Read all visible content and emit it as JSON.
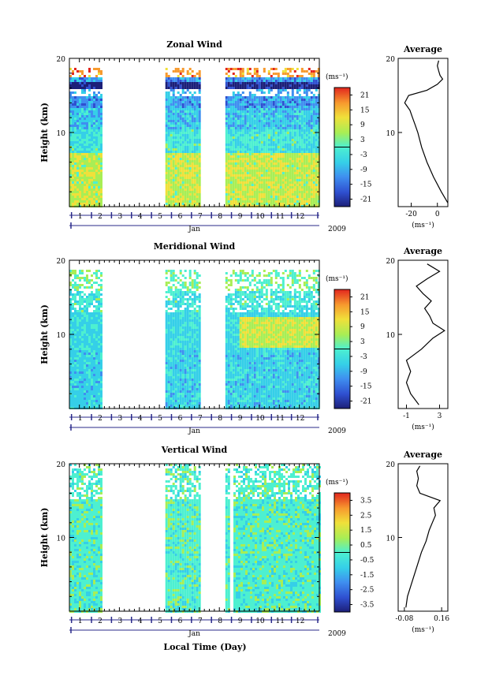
{
  "figure": {
    "xlabel": "Local Time (Day)",
    "month_label": "Jan",
    "year_label": "2009",
    "day_ticks": [
      "1",
      "2",
      "3",
      "4",
      "5",
      "6",
      "7",
      "8",
      "9",
      "10",
      "11",
      "12"
    ],
    "colorbar_unit": "(ms⁻¹)",
    "avg_title": "Average",
    "avg_unit": "(ms⁻¹)"
  },
  "chart_data": [
    {
      "type": "heatmap",
      "title": "Zonal Wind",
      "ylabel": "Height (km)",
      "ylim": [
        0,
        20
      ],
      "yticks": [
        "10",
        "20"
      ],
      "xlim": [
        0.5,
        13
      ],
      "data_segments": [
        [
          0.5,
          2.1
        ],
        [
          5.3,
          7.0
        ],
        [
          8.3,
          13.0
        ]
      ],
      "colorbar": {
        "ticks": [
          "21",
          "15",
          "9",
          "3",
          "-3",
          "-9",
          "-15",
          "-21"
        ],
        "range": [
          -24,
          24
        ]
      },
      "average_profile": {
        "xlim": [
          -30,
          8
        ],
        "xticks": [
          "-20",
          "0"
        ],
        "height": [
          0.5,
          2,
          4,
          6,
          8,
          10,
          11,
          12,
          13,
          14,
          15,
          15.7,
          16.5,
          17.2,
          17.7,
          18.3,
          19,
          19.7
        ],
        "value": [
          8,
          3,
          -3,
          -8,
          -12,
          -15,
          -17,
          -19,
          -21,
          -25,
          -22,
          -8,
          0,
          4,
          2,
          1,
          0,
          1
        ]
      }
    },
    {
      "type": "heatmap",
      "title": "Meridional Wind",
      "ylabel": "Height (km)",
      "ylim": [
        0,
        20
      ],
      "yticks": [
        "10",
        "20"
      ],
      "xlim": [
        0.5,
        13
      ],
      "data_segments": [
        [
          0.5,
          2.1
        ],
        [
          5.3,
          7.0
        ],
        [
          8.3,
          13.0
        ]
      ],
      "colorbar": {
        "ticks": [
          "21",
          "15",
          "9",
          "3",
          "-3",
          "-9",
          "-15",
          "-21"
        ],
        "range": [
          -24,
          24
        ]
      },
      "average_profile": {
        "xlim": [
          -2,
          4
        ],
        "xticks": [
          "-1",
          "3"
        ],
        "height": [
          0.5,
          2,
          3.5,
          5,
          6.5,
          8,
          9.5,
          10.5,
          11.5,
          12.5,
          13.5,
          14.5,
          15.5,
          16.5,
          17.5,
          18.5,
          19.5
        ],
        "value": [
          0.5,
          -0.5,
          -1.0,
          -0.5,
          -1.0,
          0.8,
          2.2,
          3.6,
          2.2,
          1.8,
          1.2,
          2.0,
          1.0,
          0.2,
          1.5,
          3.0,
          1.5
        ]
      }
    },
    {
      "type": "heatmap",
      "title": "Vertical Wind",
      "ylabel": "Height (km)",
      "ylim": [
        0,
        20
      ],
      "yticks": [
        "10",
        "20"
      ],
      "xlim": [
        0.5,
        13
      ],
      "data_segments": [
        [
          0.5,
          2.1
        ],
        [
          5.3,
          7.0
        ],
        [
          8.3,
          8.5
        ],
        [
          8.7,
          13.0
        ]
      ],
      "colorbar": {
        "ticks": [
          "3.5",
          "2.5",
          "1.5",
          "0.5",
          "-0.5",
          "-1.5",
          "-2.5",
          "-3.5"
        ],
        "range": [
          -4,
          4
        ]
      },
      "average_profile": {
        "xlim": [
          -0.12,
          0.2
        ],
        "xticks": [
          "-0.08",
          "0.16"
        ],
        "height": [
          0.5,
          2,
          4,
          6,
          8,
          9.5,
          11,
          12,
          13,
          14,
          15,
          16,
          17,
          18,
          19,
          19.7
        ],
        "value": [
          -0.07,
          -0.06,
          -0.03,
          0.0,
          0.03,
          0.06,
          0.08,
          0.1,
          0.12,
          0.11,
          0.15,
          0.02,
          0.0,
          0.01,
          0.0,
          0.02
        ]
      }
    }
  ]
}
